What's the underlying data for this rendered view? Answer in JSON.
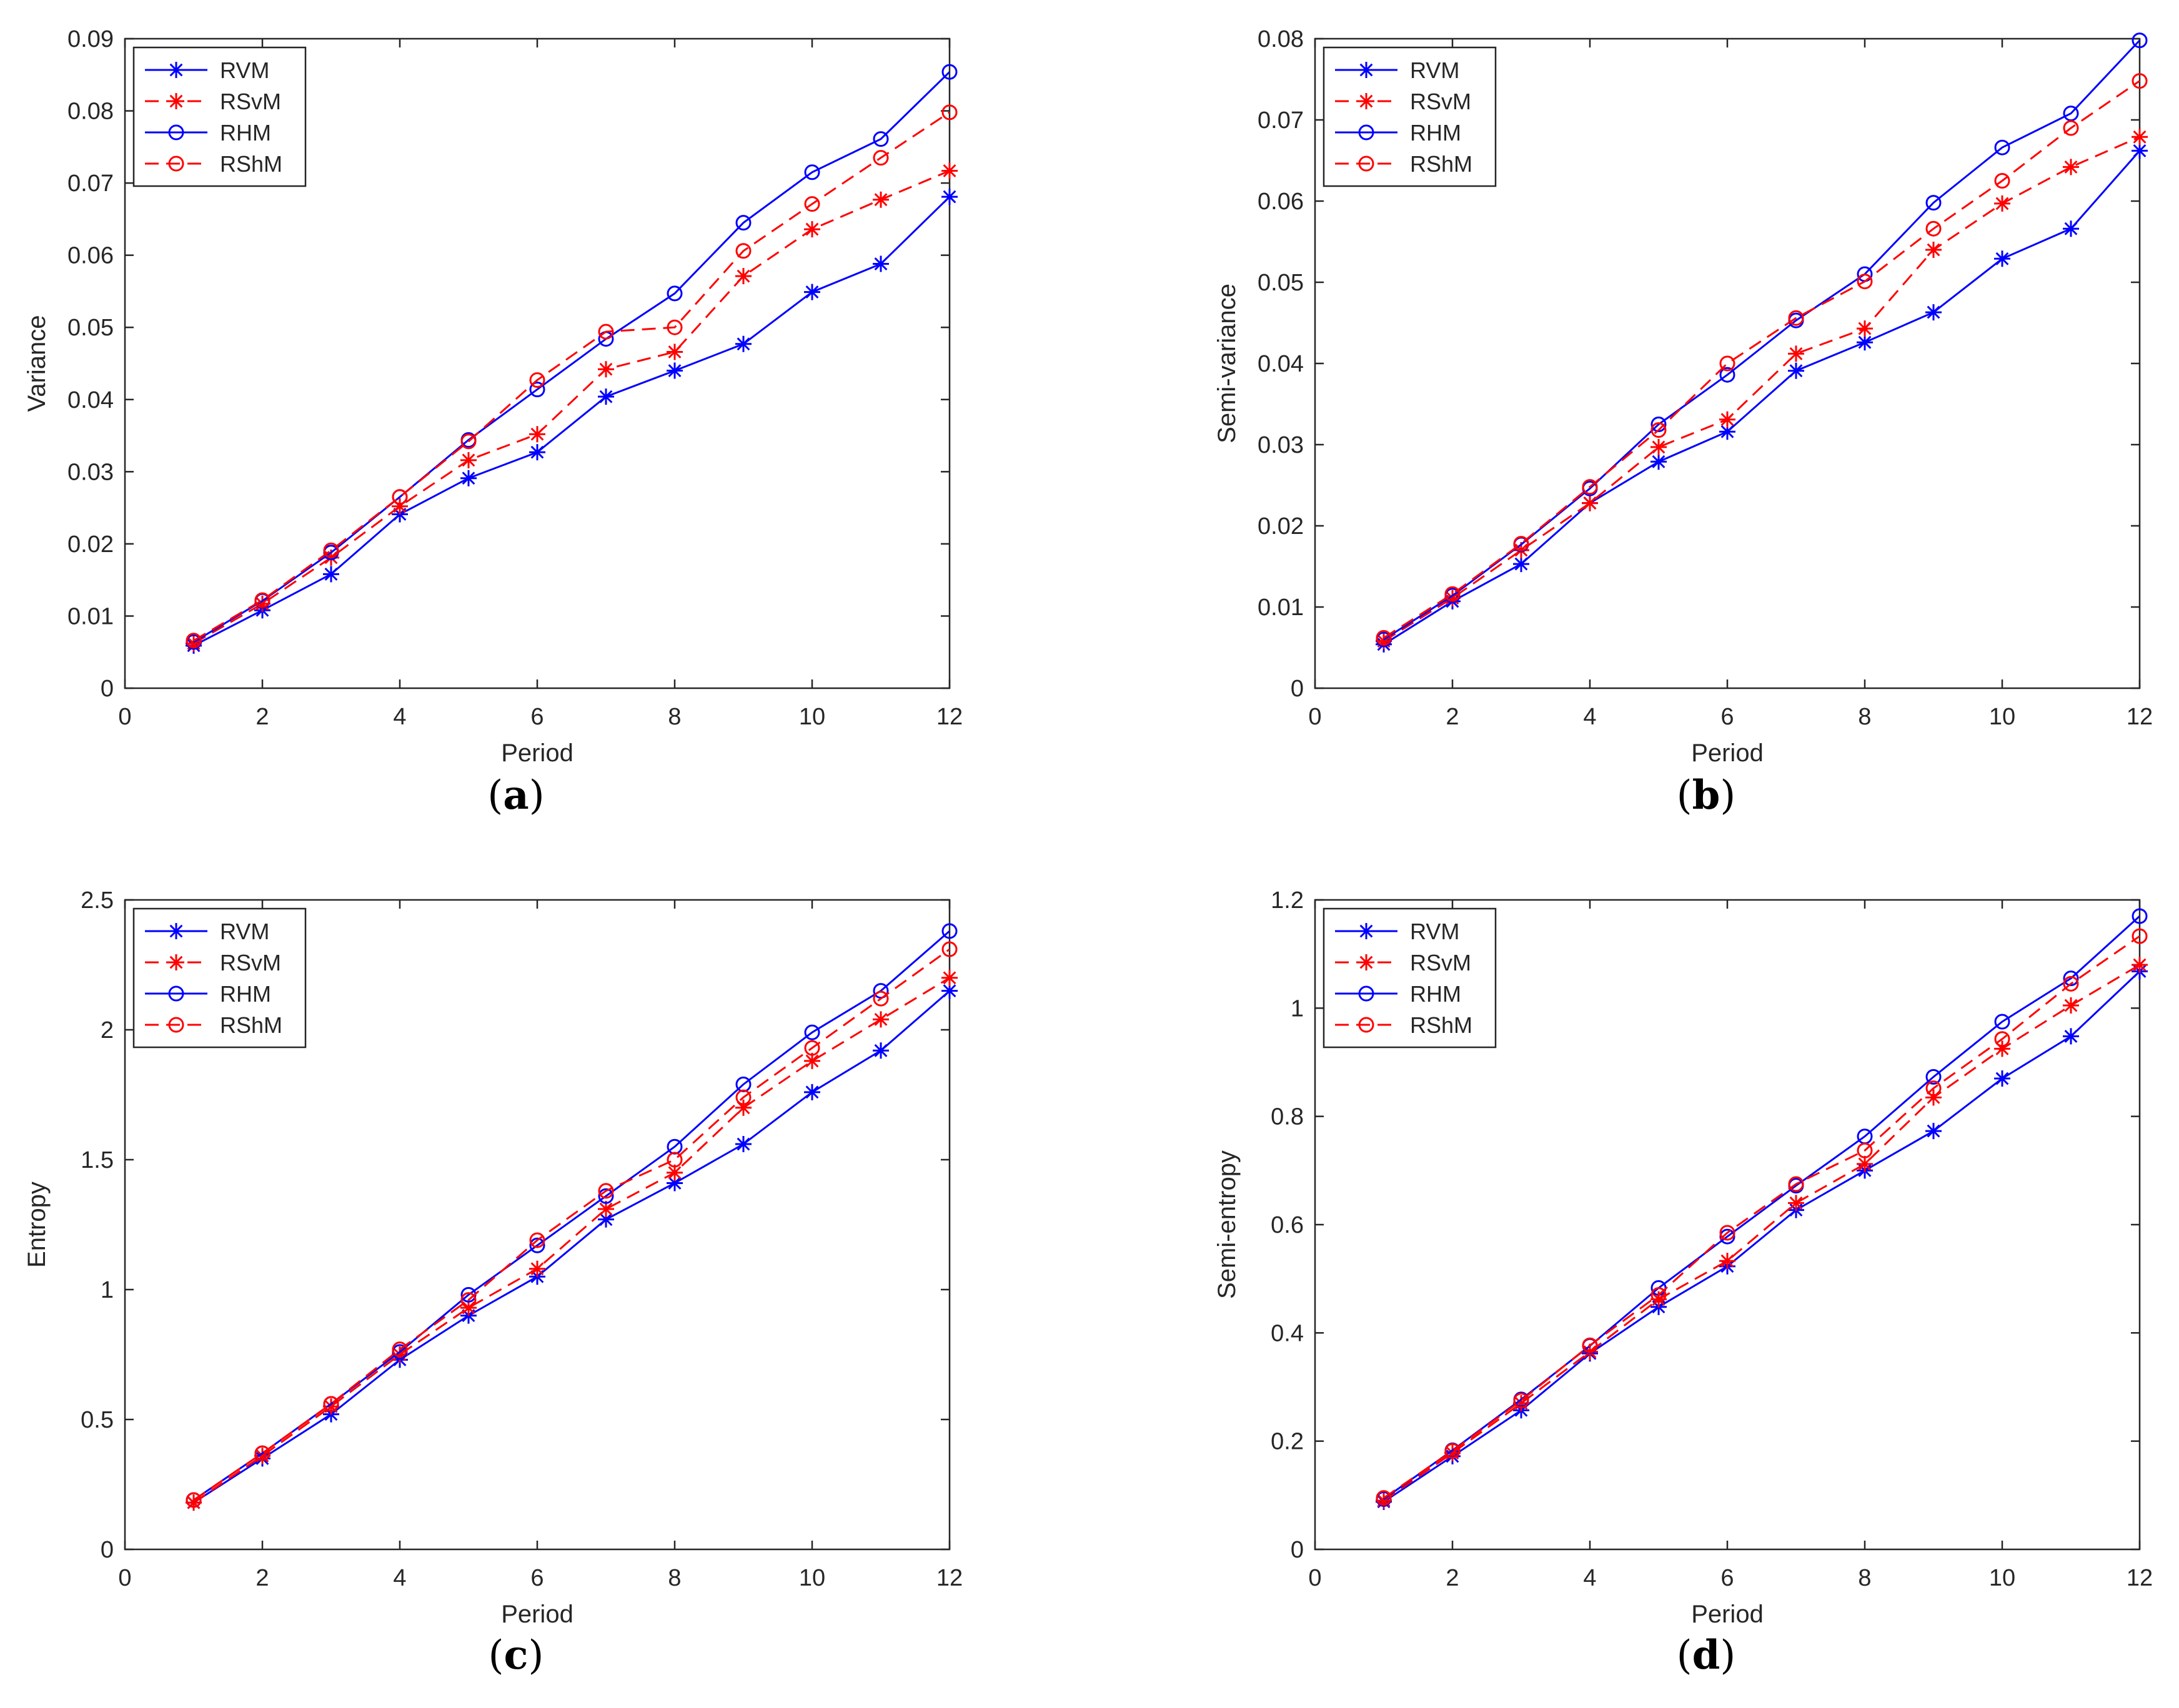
{
  "chart_data": [
    {
      "type": "line",
      "panel_label": "(a)",
      "xlabel": "Period",
      "ylabel": "Variance",
      "xlim": [
        0,
        12
      ],
      "ylim": [
        0,
        0.09
      ],
      "xticks": [
        0,
        2,
        4,
        6,
        8,
        10,
        12
      ],
      "yticks": [
        0,
        0.01,
        0.02,
        0.03,
        0.04,
        0.05,
        0.06,
        0.07,
        0.08,
        0.09
      ],
      "legend_position": "top-left",
      "x": [
        1,
        2,
        3,
        4,
        5,
        6,
        7,
        8,
        9,
        10,
        11,
        12
      ],
      "series": [
        {
          "name": "RVM",
          "color": "#0000ff",
          "dash": "solid",
          "marker": "star",
          "values": [
            0.0059,
            0.0108,
            0.0158,
            0.0241,
            0.0291,
            0.0327,
            0.0404,
            0.044,
            0.0477,
            0.0549,
            0.0588,
            0.0681
          ]
        },
        {
          "name": "RSvM",
          "color": "#ff0000",
          "dash": "dashed",
          "marker": "star",
          "values": [
            0.0062,
            0.0117,
            0.0181,
            0.0252,
            0.0316,
            0.0352,
            0.0442,
            0.0466,
            0.0571,
            0.0636,
            0.0677,
            0.0717
          ]
        },
        {
          "name": "RHM",
          "color": "#0000ff",
          "dash": "solid",
          "marker": "circle",
          "values": [
            0.0064,
            0.0121,
            0.0188,
            0.0265,
            0.0344,
            0.0414,
            0.0484,
            0.0547,
            0.0645,
            0.0715,
            0.0761,
            0.0854
          ]
        },
        {
          "name": "RShM",
          "color": "#ff0000",
          "dash": "dashed",
          "marker": "circle",
          "values": [
            0.0066,
            0.0122,
            0.0191,
            0.0265,
            0.0342,
            0.0427,
            0.0494,
            0.05,
            0.0606,
            0.0671,
            0.0735,
            0.0798
          ]
        }
      ]
    },
    {
      "type": "line",
      "panel_label": "(b)",
      "xlabel": "Period",
      "ylabel": "Semi-variance",
      "xlim": [
        0,
        12
      ],
      "ylim": [
        0,
        0.08
      ],
      "xticks": [
        0,
        2,
        4,
        6,
        8,
        10,
        12
      ],
      "yticks": [
        0,
        0.01,
        0.02,
        0.03,
        0.04,
        0.05,
        0.06,
        0.07,
        0.08
      ],
      "legend_position": "top-left",
      "x": [
        1,
        2,
        3,
        4,
        5,
        6,
        7,
        8,
        9,
        10,
        11,
        12
      ],
      "series": [
        {
          "name": "RVM",
          "color": "#0000ff",
          "dash": "solid",
          "marker": "star",
          "values": [
            0.0054,
            0.0107,
            0.0153,
            0.0228,
            0.0279,
            0.0316,
            0.0391,
            0.0426,
            0.0463,
            0.0529,
            0.0566,
            0.0662
          ]
        },
        {
          "name": "RSvM",
          "color": "#ff0000",
          "dash": "dashed",
          "marker": "star",
          "values": [
            0.0058,
            0.0111,
            0.017,
            0.0228,
            0.0297,
            0.0331,
            0.0412,
            0.0443,
            0.054,
            0.0597,
            0.0642,
            0.0679
          ]
        },
        {
          "name": "RHM",
          "color": "#0000ff",
          "dash": "solid",
          "marker": "circle",
          "values": [
            0.006,
            0.0114,
            0.0177,
            0.0246,
            0.0325,
            0.0386,
            0.0453,
            0.051,
            0.0598,
            0.0666,
            0.0708,
            0.0798
          ]
        },
        {
          "name": "RShM",
          "color": "#ff0000",
          "dash": "dashed",
          "marker": "circle",
          "values": [
            0.0062,
            0.0116,
            0.0178,
            0.0248,
            0.0318,
            0.04,
            0.0456,
            0.0501,
            0.0566,
            0.0625,
            0.069,
            0.0748
          ]
        }
      ]
    },
    {
      "type": "line",
      "panel_label": "(c)",
      "xlabel": "Period",
      "ylabel": "Entropy",
      "xlim": [
        0,
        12
      ],
      "ylim": [
        0,
        2.5
      ],
      "xticks": [
        0,
        2,
        4,
        6,
        8,
        10,
        12
      ],
      "yticks": [
        0,
        0.5,
        1,
        1.5,
        2,
        2.5
      ],
      "legend_position": "top-left",
      "x": [
        1,
        2,
        3,
        4,
        5,
        6,
        7,
        8,
        9,
        10,
        11,
        12
      ],
      "series": [
        {
          "name": "RVM",
          "color": "#0000ff",
          "dash": "solid",
          "marker": "star",
          "values": [
            0.18,
            0.35,
            0.52,
            0.73,
            0.9,
            1.05,
            1.27,
            1.41,
            1.56,
            1.76,
            1.92,
            2.15
          ]
        },
        {
          "name": "RSvM",
          "color": "#ff0000",
          "dash": "dashed",
          "marker": "star",
          "values": [
            0.18,
            0.36,
            0.55,
            0.75,
            0.93,
            1.08,
            1.31,
            1.45,
            1.7,
            1.88,
            2.04,
            2.2
          ]
        },
        {
          "name": "RHM",
          "color": "#0000ff",
          "dash": "solid",
          "marker": "circle",
          "values": [
            0.19,
            0.37,
            0.56,
            0.76,
            0.98,
            1.17,
            1.36,
            1.55,
            1.79,
            1.99,
            2.15,
            2.38
          ]
        },
        {
          "name": "RShM",
          "color": "#ff0000",
          "dash": "dashed",
          "marker": "circle",
          "values": [
            0.19,
            0.37,
            0.56,
            0.77,
            0.96,
            1.19,
            1.38,
            1.5,
            1.74,
            1.93,
            2.12,
            2.31
          ]
        }
      ]
    },
    {
      "type": "line",
      "panel_label": "(d)",
      "xlabel": "Period",
      "ylabel": "Semi-entropy",
      "xlim": [
        0,
        12
      ],
      "ylim": [
        0,
        1.2
      ],
      "xticks": [
        0,
        2,
        4,
        6,
        8,
        10,
        12
      ],
      "yticks": [
        0,
        0.2,
        0.4,
        0.6,
        0.8,
        1,
        1.2
      ],
      "legend_position": "top-left",
      "x": [
        1,
        2,
        3,
        4,
        5,
        6,
        7,
        8,
        9,
        10,
        11,
        12
      ],
      "series": [
        {
          "name": "RVM",
          "color": "#0000ff",
          "dash": "solid",
          "marker": "star",
          "values": [
            0.088,
            0.172,
            0.257,
            0.362,
            0.448,
            0.523,
            0.627,
            0.7,
            0.773,
            0.87,
            0.948,
            1.068
          ]
        },
        {
          "name": "RSvM",
          "color": "#ff0000",
          "dash": "dashed",
          "marker": "star",
          "values": [
            0.09,
            0.178,
            0.27,
            0.365,
            0.462,
            0.533,
            0.64,
            0.712,
            0.835,
            0.925,
            1.005,
            1.08
          ]
        },
        {
          "name": "RHM",
          "color": "#0000ff",
          "dash": "solid",
          "marker": "circle",
          "values": [
            0.093,
            0.183,
            0.277,
            0.376,
            0.483,
            0.578,
            0.672,
            0.763,
            0.873,
            0.975,
            1.055,
            1.17
          ]
        },
        {
          "name": "RShM",
          "color": "#ff0000",
          "dash": "dashed",
          "marker": "circle",
          "values": [
            0.095,
            0.182,
            0.275,
            0.377,
            0.47,
            0.585,
            0.675,
            0.737,
            0.852,
            0.943,
            1.045,
            1.133
          ]
        }
      ]
    }
  ]
}
